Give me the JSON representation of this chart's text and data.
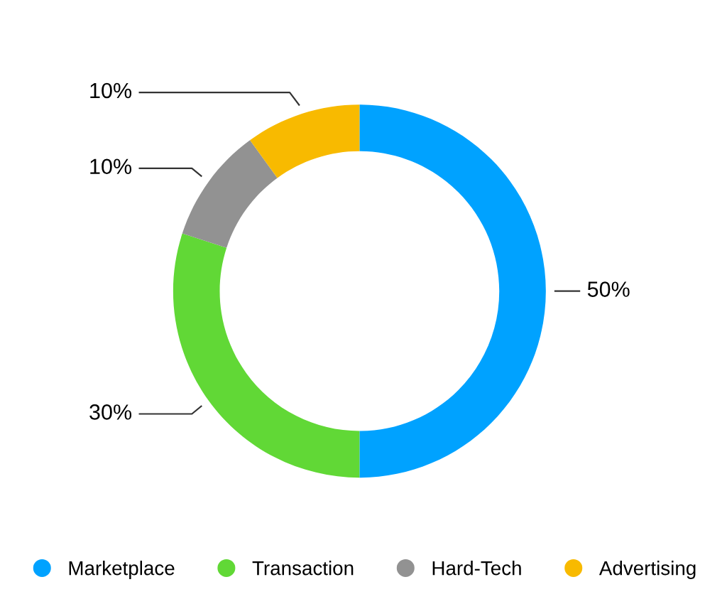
{
  "chart_data": {
    "type": "donut",
    "categories": [
      "Marketplace",
      "Transaction",
      "Hard-Tech",
      "Advertising"
    ],
    "values": [
      50,
      30,
      10,
      10
    ],
    "colors": [
      "#00a2ff",
      "#61d836",
      "#929292",
      "#f8ba00"
    ],
    "value_labels": [
      "50%",
      "30%",
      "10%",
      "10%"
    ],
    "legend": "bottom"
  }
}
